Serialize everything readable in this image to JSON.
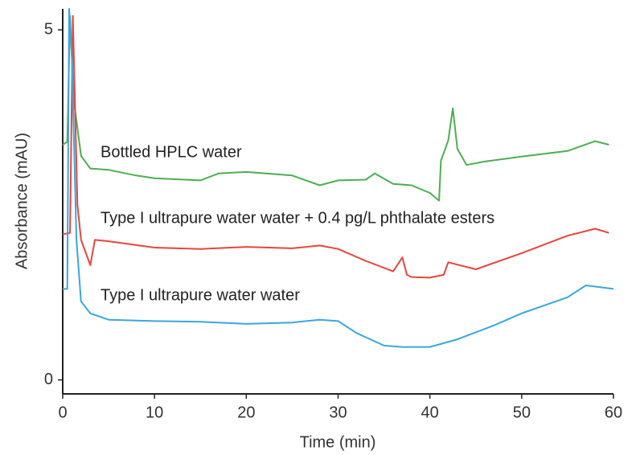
{
  "chart_data": {
    "type": "line",
    "x_label": "Time (min)",
    "y_label": "Absorbance (mAU)",
    "xlim": [
      0,
      60
    ],
    "xticks": [
      0,
      10,
      20,
      30,
      40,
      50,
      60
    ],
    "ylim": [
      -0.2,
      5.3
    ],
    "yticks": [
      0,
      5
    ],
    "series": [
      {
        "name": "Bottled HPLC water",
        "color": "#4caf50",
        "x": [
          0,
          0.5,
          0.8,
          1.2,
          2,
          3,
          5,
          8,
          10,
          15,
          17,
          20,
          25,
          28,
          30,
          33,
          34,
          36,
          38,
          40,
          41,
          41.2,
          42,
          42.5,
          43,
          44,
          46,
          50,
          55,
          58,
          59.5
        ],
        "values": [
          3.36,
          3.4,
          5.2,
          4.0,
          3.2,
          3.02,
          3.0,
          2.92,
          2.88,
          2.85,
          2.95,
          2.97,
          2.92,
          2.78,
          2.85,
          2.86,
          2.95,
          2.8,
          2.78,
          2.67,
          2.56,
          3.13,
          3.42,
          3.88,
          3.3,
          3.07,
          3.12,
          3.19,
          3.27,
          3.41,
          3.36
        ]
      },
      {
        "name": "Type I ultrapure water water + 0.4 pg/L phthalate esters",
        "color": "#e8453c",
        "x": [
          0,
          0.8,
          1.1,
          1.6,
          2,
          3,
          3.5,
          5,
          10,
          15,
          20,
          25,
          28,
          30,
          33,
          36,
          37,
          37.5,
          38,
          40,
          41.5,
          42,
          45,
          50,
          55,
          58,
          59.5
        ],
        "values": [
          2.08,
          2.1,
          5.2,
          2.5,
          2.0,
          1.64,
          2.0,
          1.98,
          1.89,
          1.87,
          1.9,
          1.88,
          1.92,
          1.87,
          1.7,
          1.55,
          1.75,
          1.5,
          1.47,
          1.46,
          1.5,
          1.68,
          1.58,
          1.81,
          2.06,
          2.16,
          2.1
        ]
      },
      {
        "name": "Type I ultrapure water water",
        "color": "#3aa6e0",
        "x": [
          0,
          0.5,
          0.7,
          1,
          1.5,
          2,
          3,
          5,
          10,
          15,
          20,
          25,
          28,
          30,
          32,
          35,
          37,
          40,
          43,
          47,
          50,
          55,
          57,
          60
        ],
        "values": [
          1.3,
          1.3,
          5.3,
          4.6,
          2.0,
          1.12,
          0.95,
          0.86,
          0.84,
          0.83,
          0.8,
          0.82,
          0.86,
          0.84,
          0.67,
          0.49,
          0.47,
          0.47,
          0.58,
          0.78,
          0.95,
          1.18,
          1.35,
          1.3
        ]
      }
    ]
  }
}
